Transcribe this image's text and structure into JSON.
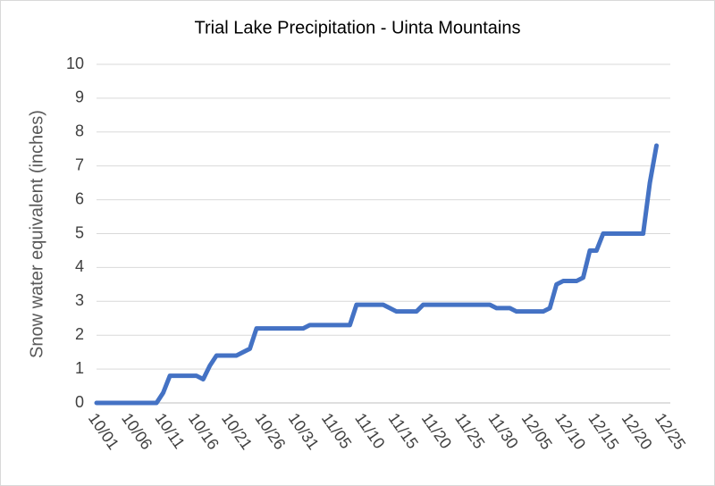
{
  "chart_data": {
    "type": "line",
    "title": "Trial Lake Precipitation - Uinta Mountains",
    "y_label": "Snow water equivalent (inches)",
    "categories": [
      "10/01",
      null,
      null,
      null,
      null,
      "10/06",
      null,
      null,
      null,
      null,
      "10/11",
      null,
      null,
      null,
      null,
      "10/16",
      null,
      null,
      null,
      null,
      "10/21",
      null,
      null,
      null,
      null,
      "10/26",
      null,
      null,
      null,
      null,
      "10/31",
      null,
      null,
      null,
      null,
      "11/05",
      null,
      null,
      null,
      null,
      "11/10",
      null,
      null,
      null,
      null,
      "11/15",
      null,
      null,
      null,
      null,
      "11/20",
      null,
      null,
      null,
      null,
      "11/25",
      null,
      null,
      null,
      null,
      "11/30",
      null,
      null,
      null,
      null,
      "12/05",
      null,
      null,
      null,
      null,
      "12/10",
      null,
      null,
      null,
      null,
      "12/15",
      null,
      null,
      null,
      null,
      "12/20",
      null,
      null,
      null,
      null,
      "12/25"
    ],
    "series": [
      {
        "name": "Snow water equivalent",
        "color": "#4472c4",
        "values": [
          0,
          0,
          0,
          0,
          0,
          0,
          0,
          0,
          0,
          0,
          0.3,
          0.8,
          0.8,
          0.8,
          0.8,
          0.8,
          0.7,
          1.1,
          1.4,
          1.4,
          1.4,
          1.4,
          1.5,
          1.6,
          2.2,
          2.2,
          2.2,
          2.2,
          2.2,
          2.2,
          2.2,
          2.2,
          2.3,
          2.3,
          2.3,
          2.3,
          2.3,
          2.3,
          2.3,
          2.9,
          2.9,
          2.9,
          2.9,
          2.9,
          2.8,
          2.7,
          2.7,
          2.7,
          2.7,
          2.9,
          2.9,
          2.9,
          2.9,
          2.9,
          2.9,
          2.9,
          2.9,
          2.9,
          2.9,
          2.9,
          2.8,
          2.8,
          2.8,
          2.7,
          2.7,
          2.7,
          2.7,
          2.7,
          2.8,
          3.5,
          3.6,
          3.6,
          3.6,
          3.7,
          4.5,
          4.5,
          5.0,
          5.0,
          5.0,
          5.0,
          5.0,
          5.0,
          5.0,
          6.5,
          7.6,
          null
        ]
      }
    ],
    "ylim": [
      0,
      10
    ],
    "yticks": [
      0,
      1,
      2,
      3,
      4,
      5,
      6,
      7,
      8,
      9,
      10
    ],
    "grid": true
  }
}
